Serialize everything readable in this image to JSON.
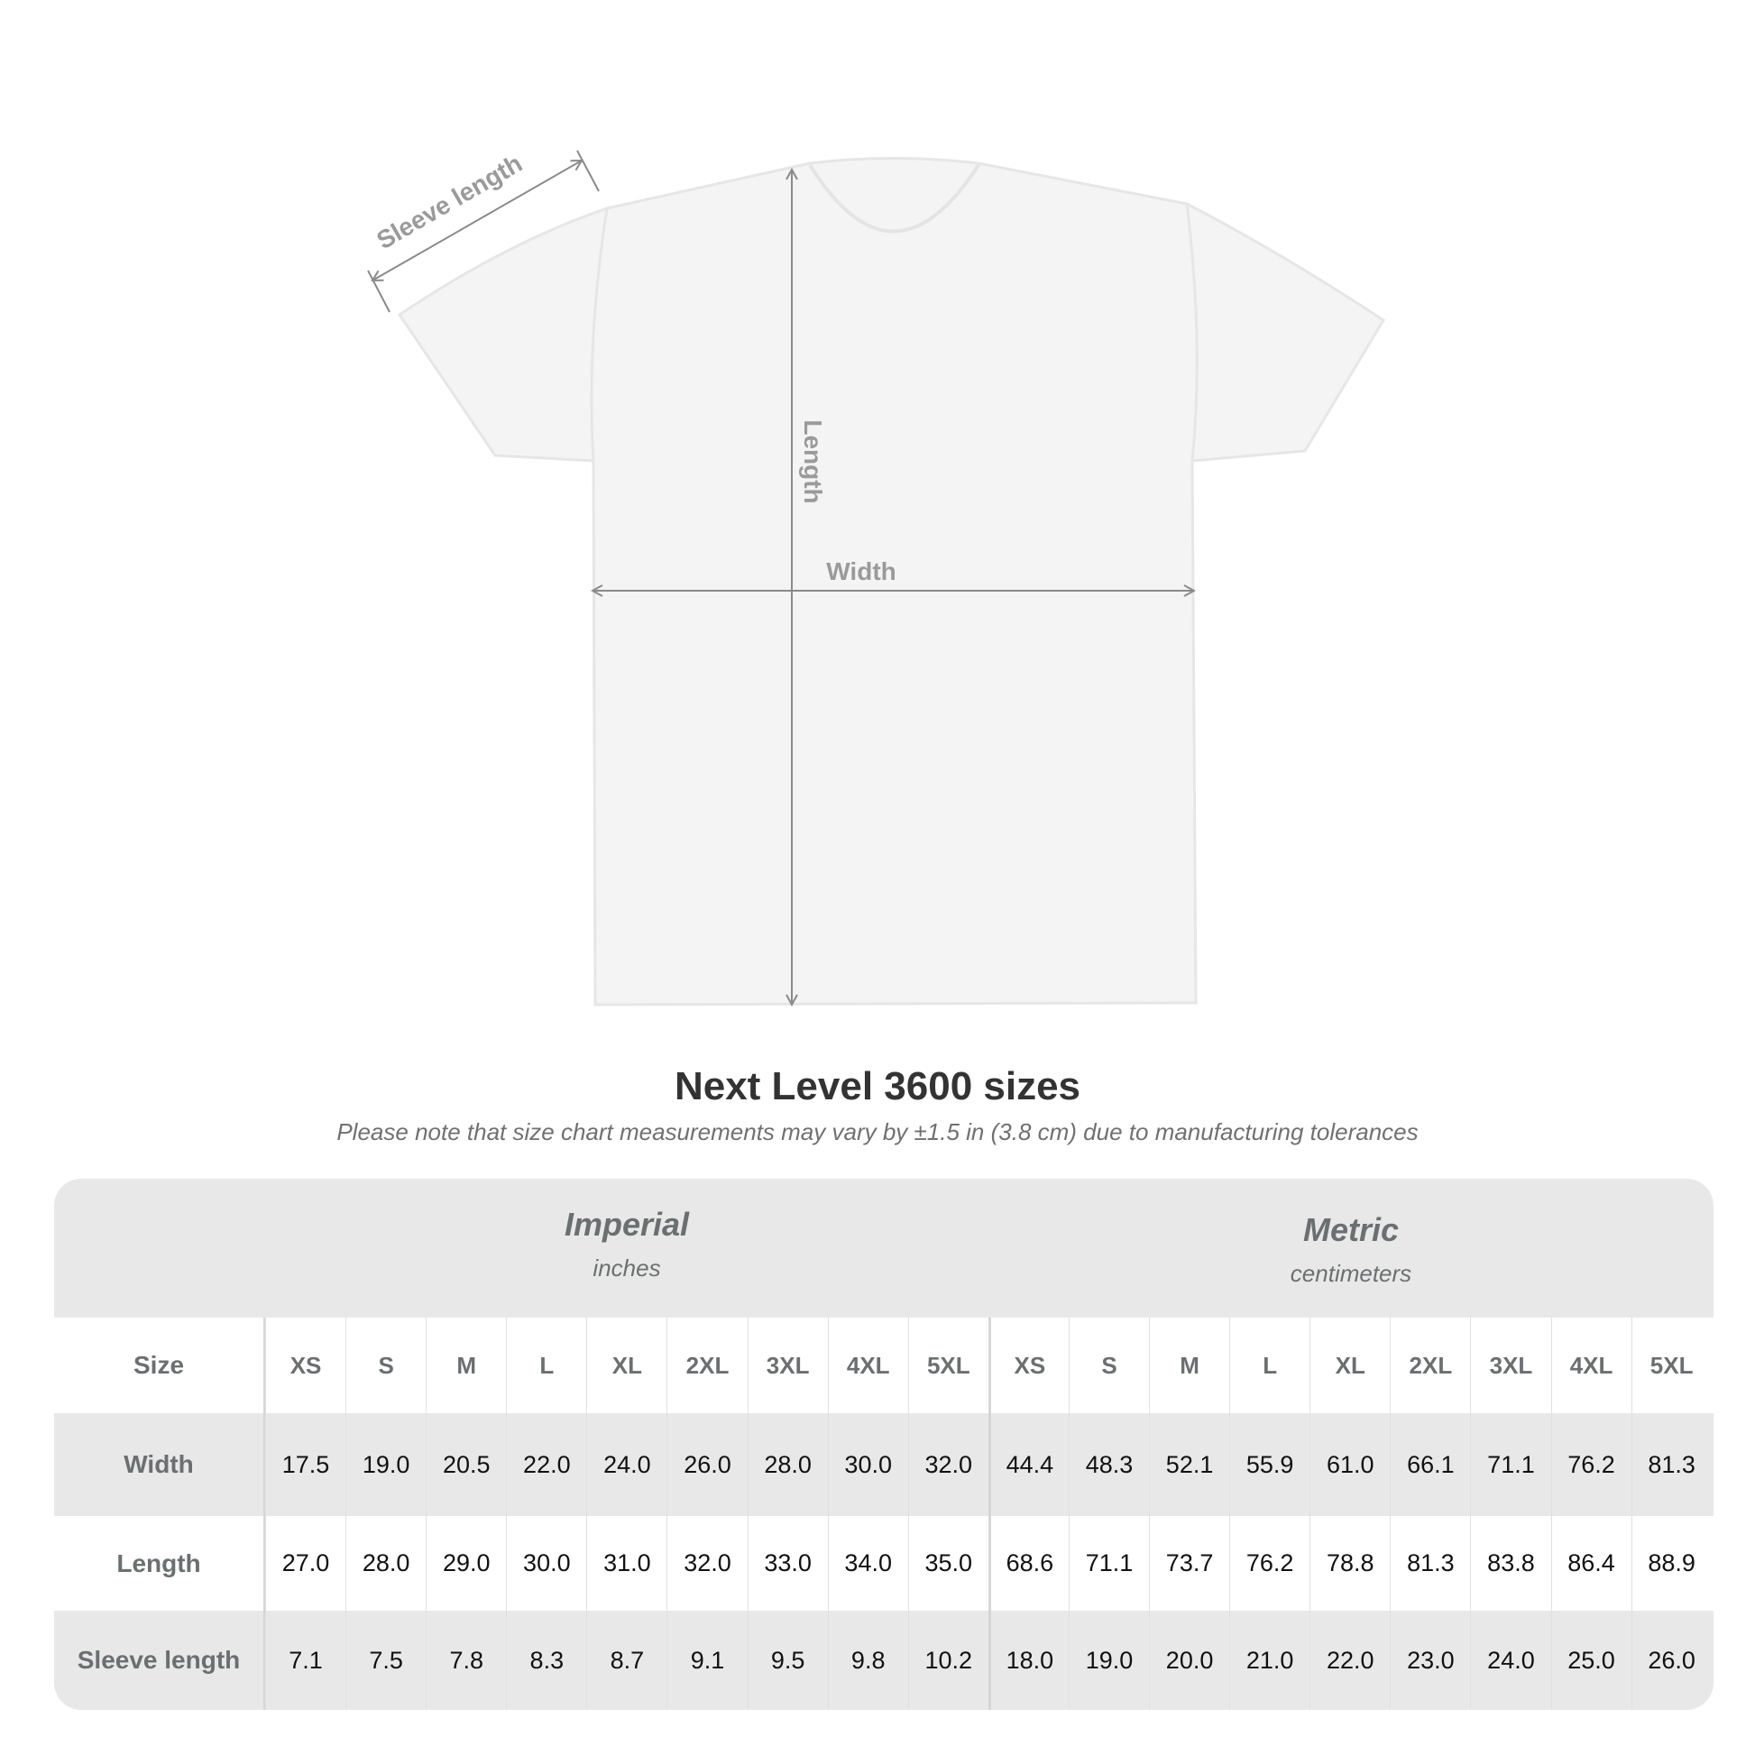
{
  "diagram": {
    "labels": {
      "sleeve": "Sleeve length",
      "length": "Length",
      "width": "Width"
    },
    "shirt_color": "#f5f5f5",
    "line_color": "#8a8a8a"
  },
  "title": "Next Level 3600 sizes",
  "subtitle": "Please note that size chart measurements may vary by ±1.5 in (3.8 cm) due to manufacturing tolerances",
  "table": {
    "imperial": {
      "name": "Imperial",
      "unit": "inches"
    },
    "metric": {
      "name": "Metric",
      "unit": "centimeters"
    },
    "size_label": "Size",
    "sizes": [
      "XS",
      "S",
      "M",
      "L",
      "XL",
      "2XL",
      "3XL",
      "4XL",
      "5XL"
    ],
    "rows": [
      {
        "label": "Width",
        "imperial": [
          "17.5",
          "19.0",
          "20.5",
          "22.0",
          "24.0",
          "26.0",
          "28.0",
          "30.0",
          "32.0"
        ],
        "metric": [
          "44.4",
          "48.3",
          "52.1",
          "55.9",
          "61.0",
          "66.1",
          "71.1",
          "76.2",
          "81.3"
        ]
      },
      {
        "label": "Length",
        "imperial": [
          "27.0",
          "28.0",
          "29.0",
          "30.0",
          "31.0",
          "32.0",
          "33.0",
          "34.0",
          "35.0"
        ],
        "metric": [
          "68.6",
          "71.1",
          "73.7",
          "76.2",
          "78.8",
          "81.3",
          "83.8",
          "86.4",
          "88.9"
        ]
      },
      {
        "label": "Sleeve length",
        "imperial": [
          "7.1",
          "7.5",
          "7.8",
          "8.3",
          "8.7",
          "9.1",
          "9.5",
          "9.8",
          "10.2"
        ],
        "metric": [
          "18.0",
          "19.0",
          "20.0",
          "21.0",
          "22.0",
          "23.0",
          "24.0",
          "25.0",
          "26.0"
        ]
      }
    ]
  }
}
